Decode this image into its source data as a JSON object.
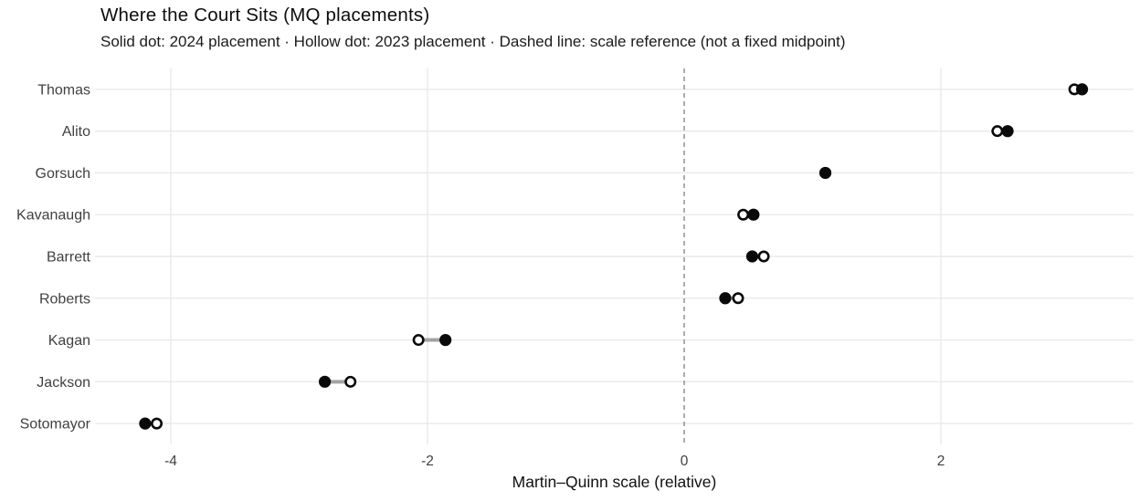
{
  "chart_data": {
    "type": "scatter",
    "variant": "dumbbell-dot-plot",
    "title": "Where the Court Sits (MQ placements)",
    "subtitle": "Solid dot: 2024 placement · Hollow dot: 2023 placement · Dashed line: scale reference (not a fixed midpoint)",
    "xlabel": "Martin–Quinn scale (relative)",
    "ylabel": "",
    "xlim": [
      -4.6,
      3.5
    ],
    "grid": true,
    "reference_line_x": 0,
    "x_ticks": [
      {
        "value": -4,
        "label": "-4"
      },
      {
        "value": -2,
        "label": "-2"
      },
      {
        "value": 0,
        "label": "0"
      },
      {
        "value": 2,
        "label": "2"
      }
    ],
    "series_legend": {
      "solid_dot": "2024 placement",
      "hollow_dot": "2023 placement",
      "dashed_line": "scale reference (not a fixed midpoint)"
    },
    "justices": [
      {
        "name": "Thomas",
        "mq_2024": 3.1,
        "mq_2023": 3.04
      },
      {
        "name": "Alito",
        "mq_2024": 2.52,
        "mq_2023": 2.44
      },
      {
        "name": "Gorsuch",
        "mq_2024": 1.1,
        "mq_2023": 1.1
      },
      {
        "name": "Kavanaugh",
        "mq_2024": 0.54,
        "mq_2023": 0.46
      },
      {
        "name": "Barrett",
        "mq_2024": 0.53,
        "mq_2023": 0.62
      },
      {
        "name": "Roberts",
        "mq_2024": 0.32,
        "mq_2023": 0.42
      },
      {
        "name": "Kagan",
        "mq_2024": -1.86,
        "mq_2023": -2.07
      },
      {
        "name": "Jackson",
        "mq_2024": -2.8,
        "mq_2023": -2.6
      },
      {
        "name": "Sotomayor",
        "mq_2024": -4.2,
        "mq_2023": -4.11
      }
    ],
    "colors": {
      "dot": "#0a0a0a",
      "hollow_fill": "#ffffff",
      "connector": "#a3a3a3",
      "gridline": "#e9e9e9",
      "reference_line": "#808080",
      "axis_text": "#404040",
      "title_text": "#0d0d0d"
    }
  }
}
